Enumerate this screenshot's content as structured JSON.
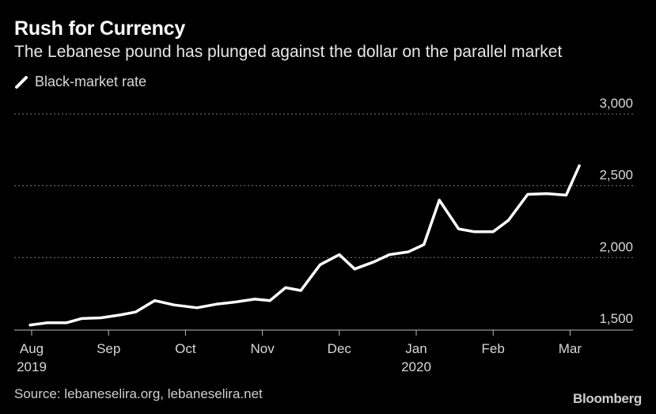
{
  "title": "Rush for Currency",
  "subtitle": "The Lebanese pound has plunged against the dollar on the parallel market",
  "legend": {
    "label": "Black-market rate"
  },
  "source": "Source: lebaneselira.org, lebaneselira.net",
  "brand": "Bloomberg",
  "colors": {
    "background": "#000000",
    "line": "#ffffff",
    "grid": "#7a7a7a",
    "text": "#d8d8d8"
  },
  "chart_data": {
    "type": "line",
    "title": "Rush for Currency",
    "xlabel": "",
    "ylabel": "",
    "ylim": [
      1500,
      3000
    ],
    "y_ticks": [
      {
        "value": 1500,
        "label": "1,500"
      },
      {
        "value": 2000,
        "label": "2,000"
      },
      {
        "value": 2500,
        "label": "2,500"
      },
      {
        "value": 3000,
        "label": "3,000"
      }
    ],
    "x_range": [
      0,
      7.3
    ],
    "x_ticks": [
      {
        "pos": 0,
        "label": "Aug",
        "sub": "2019"
      },
      {
        "pos": 1,
        "label": "Sep",
        "sub": ""
      },
      {
        "pos": 2,
        "label": "Oct",
        "sub": ""
      },
      {
        "pos": 3,
        "label": "Nov",
        "sub": ""
      },
      {
        "pos": 4,
        "label": "Dec",
        "sub": ""
      },
      {
        "pos": 5,
        "label": "Jan",
        "sub": "2020"
      },
      {
        "pos": 6,
        "label": "Feb",
        "sub": ""
      },
      {
        "pos": 7,
        "label": "Mar",
        "sub": ""
      }
    ],
    "legend_position": "top-left",
    "grid": true,
    "series": [
      {
        "name": "Black-market rate",
        "x": [
          -0.02,
          0.2,
          0.45,
          0.65,
          0.9,
          1.15,
          1.35,
          1.6,
          1.85,
          2.15,
          2.4,
          2.65,
          2.9,
          3.1,
          3.3,
          3.5,
          3.75,
          4.0,
          4.2,
          4.45,
          4.65,
          4.9,
          5.1,
          5.3,
          5.55,
          5.75,
          6.0,
          6.2,
          6.45,
          6.7,
          6.95,
          7.12
        ],
        "values": [
          1530,
          1545,
          1545,
          1575,
          1580,
          1600,
          1620,
          1700,
          1670,
          1650,
          1675,
          1690,
          1710,
          1700,
          1790,
          1770,
          1950,
          2020,
          1920,
          1970,
          2020,
          2040,
          2090,
          2400,
          2200,
          2180,
          2180,
          2260,
          2440,
          2445,
          2435,
          2640
        ]
      }
    ]
  }
}
